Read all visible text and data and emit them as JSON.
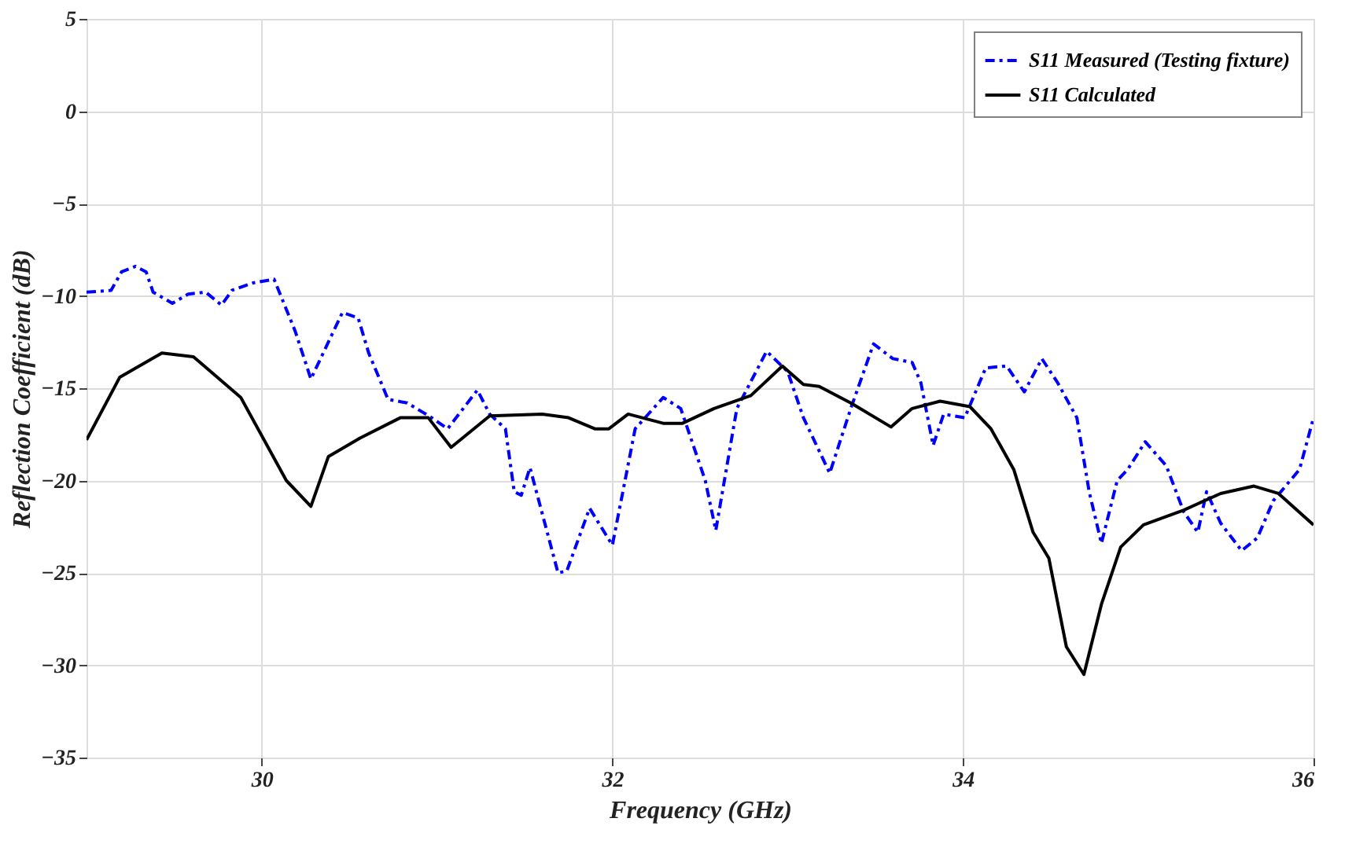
{
  "chart_data": {
    "type": "line",
    "xlabel": "Frequency (GHz)",
    "ylabel": "Reflection Coefficient (dB)",
    "xlim": [
      29,
      36
    ],
    "xticks": [
      30,
      32,
      34,
      36
    ],
    "ylim": [
      -35,
      5
    ],
    "yticks": [
      -35,
      -30,
      -25,
      -20,
      -15,
      -10,
      -5,
      0,
      5
    ],
    "grid": true,
    "legend": "top right",
    "marker": "none",
    "series": [
      {
        "name": "S11 Measured (Testing fixture)",
        "color": "#0000ff",
        "line_style": "dashed",
        "x": [
          29.0,
          29.14,
          29.2,
          29.28,
          29.34,
          29.38,
          29.49,
          29.58,
          29.68,
          29.77,
          29.83,
          29.95,
          30.07,
          30.19,
          30.28,
          30.46,
          30.55,
          30.61,
          30.72,
          30.83,
          30.97,
          31.06,
          31.23,
          31.3,
          31.39,
          31.44,
          31.48,
          31.53,
          31.69,
          31.74,
          31.87,
          32.0,
          32.13,
          32.29,
          32.39,
          32.53,
          32.59,
          32.71,
          32.88,
          33.0,
          33.09,
          33.24,
          33.36,
          33.49,
          33.6,
          33.71,
          33.76,
          33.83,
          33.89,
          34.01,
          34.13,
          34.25,
          34.35,
          34.45,
          34.54,
          34.65,
          34.72,
          34.79,
          34.88,
          34.94,
          35.04,
          35.16,
          35.26,
          35.34,
          35.39,
          35.47,
          35.59,
          35.68,
          35.77,
          35.92,
          36.0
        ],
        "values": [
          -9.8,
          -9.7,
          -8.7,
          -8.4,
          -8.7,
          -9.8,
          -10.4,
          -9.9,
          -9.8,
          -10.5,
          -9.7,
          -9.3,
          -9.1,
          -11.9,
          -14.5,
          -10.9,
          -11.2,
          -13.1,
          -15.6,
          -15.8,
          -16.6,
          -17.2,
          -15.1,
          -16.4,
          -17.2,
          -20.6,
          -20.8,
          -19.3,
          -25.0,
          -24.9,
          -21.5,
          -23.5,
          -17.2,
          -15.5,
          -16.1,
          -20.0,
          -22.7,
          -16.1,
          -13.0,
          -14.1,
          -16.6,
          -19.6,
          -16.1,
          -12.6,
          -13.4,
          -13.6,
          -14.7,
          -18.1,
          -16.4,
          -16.6,
          -13.9,
          -13.8,
          -15.2,
          -13.4,
          -14.7,
          -16.6,
          -20.6,
          -23.4,
          -20.0,
          -19.4,
          -17.9,
          -19.2,
          -21.7,
          -22.8,
          -20.6,
          -22.3,
          -23.8,
          -23.1,
          -21.1,
          -19.4,
          -16.6
        ]
      },
      {
        "name": "S11 Calculated",
        "color": "#000000",
        "line_style": "solid",
        "x": [
          29.0,
          29.19,
          29.43,
          29.61,
          29.88,
          30.14,
          30.28,
          30.38,
          30.56,
          30.79,
          30.95,
          31.08,
          31.3,
          31.6,
          31.75,
          31.9,
          31.98,
          32.09,
          32.29,
          32.4,
          32.58,
          32.79,
          32.97,
          33.09,
          33.18,
          33.36,
          33.59,
          33.71,
          33.87,
          34.04,
          34.16,
          34.29,
          34.4,
          34.49,
          34.59,
          34.69,
          34.79,
          34.9,
          35.03,
          35.26,
          35.47,
          35.66,
          35.8,
          36.0
        ],
        "values": [
          -17.8,
          -14.4,
          -13.1,
          -13.3,
          -15.5,
          -20.0,
          -21.4,
          -18.7,
          -17.7,
          -16.6,
          -16.6,
          -18.2,
          -16.5,
          -16.4,
          -16.6,
          -17.2,
          -17.2,
          -16.4,
          -16.9,
          -16.9,
          -16.1,
          -15.4,
          -13.8,
          -14.8,
          -14.9,
          -15.8,
          -17.1,
          -16.1,
          -15.7,
          -16.0,
          -17.2,
          -19.4,
          -22.8,
          -24.2,
          -29.0,
          -30.5,
          -26.7,
          -23.6,
          -22.4,
          -21.6,
          -20.7,
          -20.3,
          -20.7,
          -22.4
        ]
      }
    ]
  }
}
